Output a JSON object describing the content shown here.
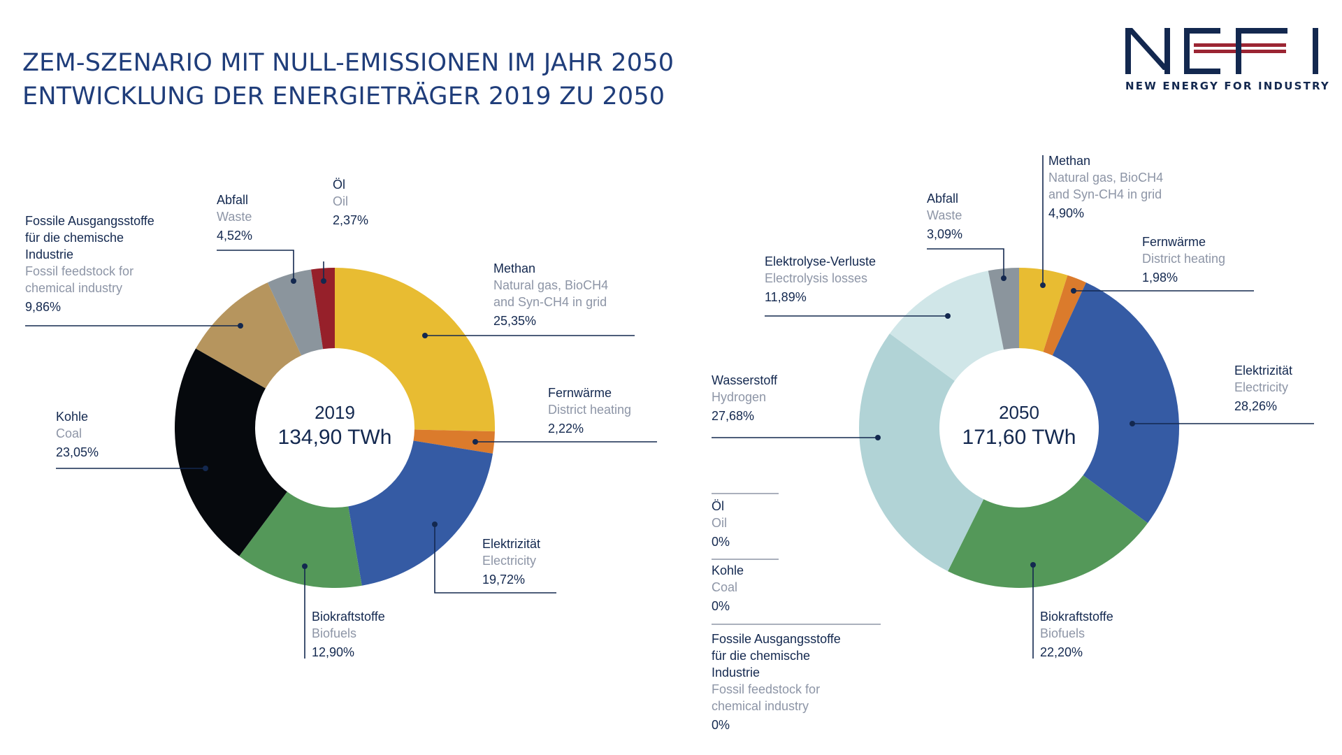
{
  "title_lines": [
    "ZEM-SZENARIO MIT NULL-EMISSIONEN IM JAHR 2050",
    "ENTWICKLUNG DER ENERGIETRÄGER 2019 ZU 2050"
  ],
  "logo": {
    "wordmark": "NEFI",
    "tagline": "NEW ENERGY FOR INDUSTRY"
  },
  "colors": {
    "title": "#1f3d7a",
    "text": "#13284f",
    "text_secondary": "#8d95a6",
    "leader_line": "#13284f"
  },
  "chart_data": [
    {
      "type": "pie",
      "center_label": {
        "year": "2019",
        "total": "134,90 TWh"
      },
      "slices": [
        {
          "key": "methan",
          "name_de": "Methan",
          "name_en": [
            "Natural gas, BioCH4",
            "and Syn-CH4 in grid"
          ],
          "label": "25,35%",
          "value": 25.35,
          "color": "#e8bc32"
        },
        {
          "key": "fernwaerme",
          "name_de": "Fernwärme",
          "name_en": [
            "District heating"
          ],
          "label": "2,22%",
          "value": 2.22,
          "color": "#db7b2c"
        },
        {
          "key": "elektrizitaet",
          "name_de": "Elektrizität",
          "name_en": [
            "Electricity"
          ],
          "label": "19,72%",
          "value": 19.72,
          "color": "#355ba4"
        },
        {
          "key": "biokraftstoffe",
          "name_de": "Biokraftstoffe",
          "name_en": [
            "Biofuels"
          ],
          "label": "12,90%",
          "value": 12.9,
          "color": "#549859"
        },
        {
          "key": "kohle",
          "name_de": "Kohle",
          "name_en": [
            "Coal"
          ],
          "label": "23,05%",
          "value": 23.05,
          "color": "#06090d"
        },
        {
          "key": "fossile",
          "name_de": "Fossile Ausgangsstoffe für die chemische Industrie",
          "name_de_lines": [
            "Fossile Ausgangsstoffe",
            "für die chemische",
            "Industrie"
          ],
          "name_en": [
            "Fossil feedstock for",
            "chemical industry"
          ],
          "label": "9,86%",
          "value": 9.86,
          "color": "#b6955e"
        },
        {
          "key": "abfall",
          "name_de": "Abfall",
          "name_en": [
            "Waste"
          ],
          "label": "4,52%",
          "value": 4.52,
          "color": "#8b959d"
        },
        {
          "key": "oel",
          "name_de": "Öl",
          "name_en": [
            "Oil"
          ],
          "label": "2,37%",
          "value": 2.37,
          "color": "#96202a"
        }
      ]
    },
    {
      "type": "pie",
      "center_label": {
        "year": "2050",
        "total": "171,60 TWh"
      },
      "slices": [
        {
          "key": "methan",
          "name_de": "Methan",
          "name_en": [
            "Natural gas, BioCH4",
            "and Syn-CH4 in grid"
          ],
          "label": "4,90%",
          "value": 4.9,
          "color": "#e8bc32"
        },
        {
          "key": "fernwaerme",
          "name_de": "Fernwärme",
          "name_en": [
            "District heating"
          ],
          "label": "1,98%",
          "value": 1.98,
          "color": "#db7b2c"
        },
        {
          "key": "elektrizitaet",
          "name_de": "Elektrizität",
          "name_en": [
            "Electricity"
          ],
          "label": "28,26%",
          "value": 28.26,
          "color": "#355ba4"
        },
        {
          "key": "biokraftstoffe",
          "name_de": "Biokraftstoffe",
          "name_en": [
            "Biofuels"
          ],
          "label": "22,20%",
          "value": 22.2,
          "color": "#549859"
        },
        {
          "key": "wasserstoff",
          "name_de": "Wasserstoff",
          "name_en": [
            "Hydrogen"
          ],
          "label": "27,68%",
          "value": 27.68,
          "color": "#b1d3d6"
        },
        {
          "key": "elektrolyse",
          "name_de": "Elektrolyse-Verluste",
          "name_en": [
            "Electrolysis losses"
          ],
          "label": "11,89%",
          "value": 11.89,
          "color": "#d0e6e8"
        },
        {
          "key": "abfall",
          "name_de": "Abfall",
          "name_en": [
            "Waste"
          ],
          "label": "3,09%",
          "value": 3.09,
          "color": "#8b959d"
        }
      ],
      "zero_items": [
        {
          "key": "oel",
          "name_de": "Öl",
          "name_en": [
            "Oil"
          ],
          "label": "0%",
          "value": 0
        },
        {
          "key": "kohle",
          "name_de": "Kohle",
          "name_en": [
            "Coal"
          ],
          "label": "0%",
          "value": 0
        },
        {
          "key": "fossile",
          "name_de": "Fossile Ausgangsstoffe für die chemische Industrie",
          "name_de_lines": [
            "Fossile Ausgangsstoffe",
            "für die chemische",
            "Industrie"
          ],
          "name_en": [
            "Fossil feedstock for",
            "chemical industry"
          ],
          "label": "0%",
          "value": 0
        }
      ]
    }
  ]
}
